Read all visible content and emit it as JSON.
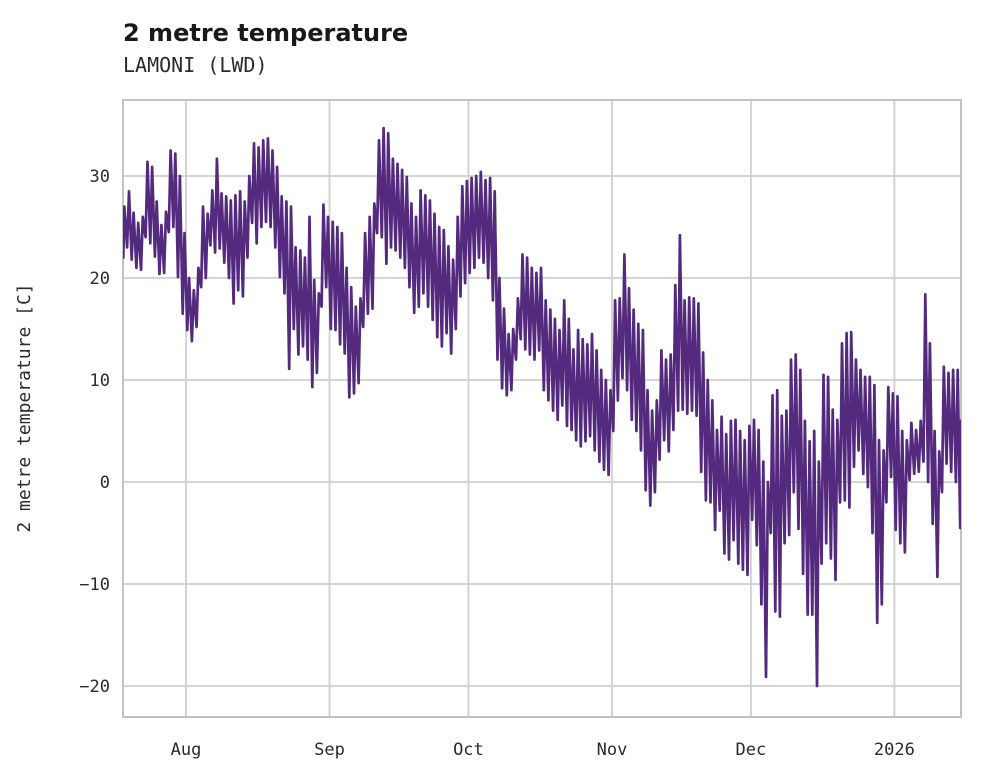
{
  "chart_data": {
    "type": "line",
    "title": "2 metre temperature",
    "subtitle": "LAMONI (LWD)",
    "ylabel": "2 metre temperature [C]",
    "xlabel": "",
    "grid": true,
    "legend": "none",
    "line_color": "#542a7e",
    "grid_color": "#cfcfcf",
    "frame_color": "#c2c2c2",
    "ylim": [
      -23.0,
      37.5
    ],
    "yticks": [
      {
        "value": 30,
        "label": "30"
      },
      {
        "value": 20,
        "label": "20"
      },
      {
        "value": 10,
        "label": "10"
      },
      {
        "value": 0,
        "label": "0"
      },
      {
        "value": -10,
        "label": "−10"
      },
      {
        "value": -20,
        "label": "−20"
      }
    ],
    "xticks": [
      {
        "day": 14,
        "label": "Aug"
      },
      {
        "day": 45,
        "label": "Sep"
      },
      {
        "day": 75,
        "label": "Oct"
      },
      {
        "day": 106,
        "label": "Nov"
      },
      {
        "day": 136,
        "label": "Dec"
      },
      {
        "day": 167,
        "label": "2026"
      }
    ],
    "x_span_days": 182,
    "x_start_label": "Jul 18",
    "series": {
      "name": "2 metre temperature",
      "units": "C",
      "cadence": "daily min/max envelope of diurnal cycle, read from plot",
      "daily_max": [
        27.0,
        28.5,
        26.4,
        25.4,
        26.0,
        31.4,
        30.9,
        27.5,
        25.2,
        26.5,
        32.5,
        32.2,
        30.0,
        24.4,
        20.0,
        18.8,
        21.0,
        27.0,
        26.3,
        28.6,
        31.7,
        28.3,
        28.0,
        27.6,
        28.1,
        28.5,
        27.5,
        30.0,
        33.2,
        32.8,
        33.5,
        33.7,
        32.5,
        30.9,
        28.0,
        27.5,
        27.0,
        23.0,
        22.7,
        22.0,
        26.0,
        19.8,
        18.5,
        27.2,
        26.0,
        25.5,
        25.0,
        24.4,
        21.0,
        19.1,
        17.2,
        18.0,
        24.4,
        26.0,
        27.3,
        33.5,
        34.7,
        34.2,
        31.7,
        31.2,
        30.6,
        29.9,
        27.3,
        26.0,
        28.6,
        28.1,
        27.6,
        26.3,
        25.0,
        24.7,
        23.1,
        21.8,
        26.0,
        29.0,
        29.5,
        29.8,
        30.0,
        30.4,
        29.6,
        29.8,
        28.5,
        20.0,
        17.0,
        14.5,
        15.0,
        18.0,
        22.3,
        22.0,
        21.0,
        20.5,
        21.0,
        17.8,
        16.9,
        16.0,
        14.9,
        17.8,
        16.0,
        13.0,
        14.9,
        14.0,
        13.5,
        14.5,
        12.9,
        11.0,
        10.0,
        9.0,
        17.8,
        18.0,
        22.3,
        19.0,
        16.9,
        15.5,
        14.9,
        9.0,
        7.0,
        8.0,
        12.9,
        12.0,
        12.5,
        19.3,
        24.2,
        17.8,
        18.1,
        18.0,
        17.5,
        12.7,
        10.0,
        8.0,
        5.1,
        6.4,
        4.7,
        6.0,
        6.1,
        5.0,
        4.1,
        5.5,
        6.1,
        5.1,
        2.0,
        0.0,
        8.5,
        9.0,
        6.5,
        7.0,
        12.0,
        12.5,
        11.0,
        6.0,
        4.0,
        5.0,
        2.0,
        10.5,
        10.3,
        7.1,
        6.1,
        13.6,
        14.6,
        14.7,
        12.0,
        11.0,
        10.3,
        10.3,
        9.5,
        4.1,
        3.1,
        9.3,
        8.7,
        8.4,
        5.0,
        4.1,
        5.8,
        5.1,
        6.0,
        18.4,
        13.6,
        5.0,
        3.0,
        11.3,
        10.7,
        11.0,
        11.0,
        6.0
      ],
      "daily_min": [
        22.0,
        23.0,
        21.8,
        21.0,
        20.8,
        24.0,
        23.4,
        22.1,
        20.4,
        20.5,
        24.5,
        25.0,
        20.1,
        16.5,
        14.9,
        13.8,
        15.2,
        19.1,
        20.0,
        23.2,
        22.5,
        22.9,
        21.5,
        20.0,
        17.5,
        18.8,
        18.2,
        22.0,
        25.4,
        23.4,
        25.0,
        25.5,
        25.0,
        23.0,
        20.1,
        18.5,
        11.1,
        15.0,
        12.5,
        13.3,
        12.0,
        9.3,
        10.7,
        17.2,
        19.1,
        15.0,
        14.9,
        13.5,
        12.6,
        8.3,
        8.7,
        9.7,
        15.2,
        16.5,
        17.0,
        24.4,
        24.0,
        21.4,
        23.0,
        22.7,
        22.0,
        21.0,
        19.1,
        16.6,
        17.2,
        18.5,
        17.2,
        15.9,
        14.2,
        13.3,
        14.6,
        12.6,
        15.0,
        18.2,
        19.5,
        20.5,
        21.0,
        22.0,
        21.5,
        20.0,
        17.8,
        12.0,
        9.2,
        8.5,
        9.0,
        12.0,
        14.0,
        13.0,
        12.5,
        12.0,
        12.9,
        9.0,
        8.0,
        7.0,
        6.1,
        7.5,
        5.5,
        5.1,
        4.1,
        3.5,
        4.0,
        4.5,
        3.1,
        2.0,
        1.2,
        0.7,
        5.0,
        8.0,
        10.2,
        9.0,
        6.1,
        5.0,
        3.1,
        -0.8,
        -2.3,
        -1.0,
        2.2,
        4.1,
        3.0,
        5.1,
        7.0,
        7.1,
        6.7,
        7.0,
        6.5,
        1.0,
        -1.8,
        -2.0,
        -4.7,
        -2.8,
        -7.0,
        -7.6,
        -5.7,
        -8.0,
        -8.6,
        -9.1,
        -3.7,
        -6.2,
        -12.0,
        -19.1,
        -5.0,
        -12.7,
        -13.2,
        -6.0,
        -5.2,
        -1.0,
        -4.6,
        -9.0,
        -13.0,
        -13.0,
        -20.0,
        -8.0,
        -6.0,
        -7.5,
        -9.6,
        -2.0,
        -1.8,
        -2.5,
        1.5,
        3.1,
        0.8,
        -0.5,
        -5.0,
        -13.8,
        -12.0,
        -2.0,
        0.5,
        -4.7,
        -6.0,
        -6.9,
        0.2,
        0.8,
        1.0,
        2.0,
        0.0,
        -4.1,
        -9.3,
        -1.0,
        1.8,
        1.0,
        0.0,
        -4.5
      ]
    }
  }
}
